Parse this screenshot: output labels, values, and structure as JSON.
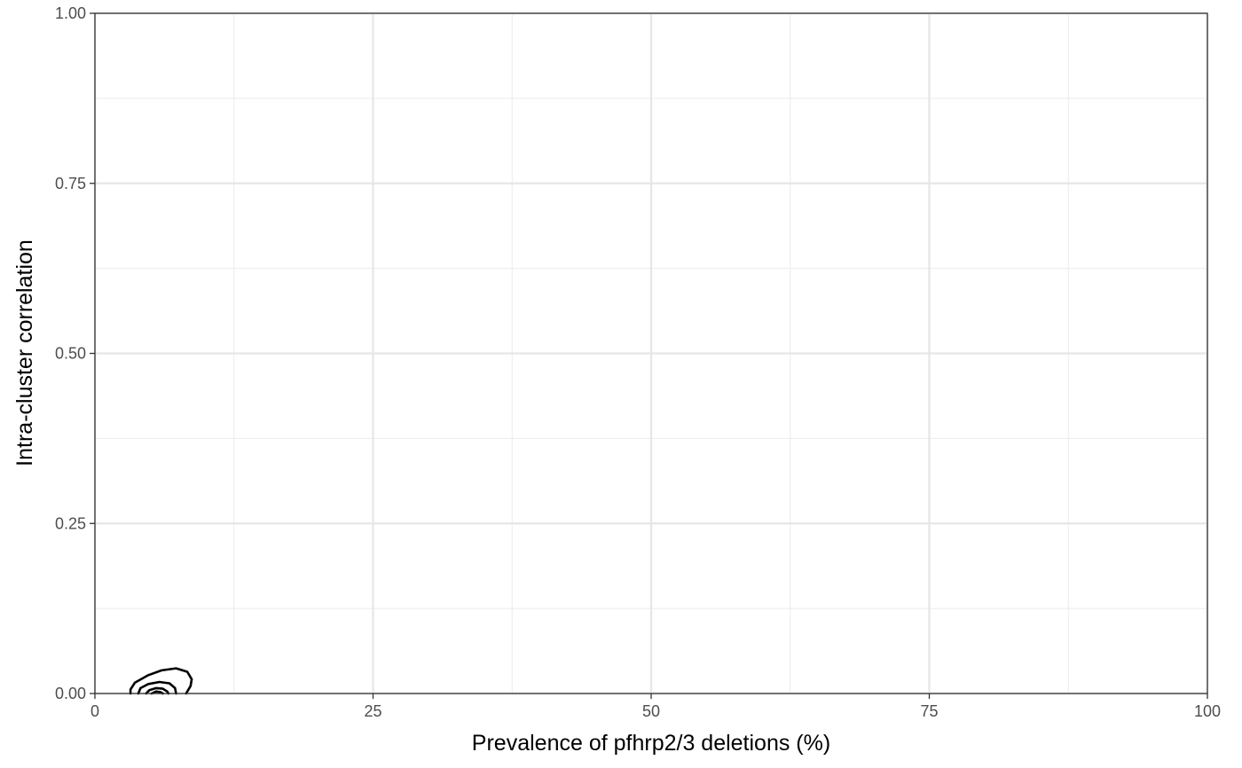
{
  "chart_data": {
    "type": "contour",
    "title": "",
    "xlabel": "Prevalence of pfhrp2/3 deletions (%)",
    "ylabel": "Intra-cluster correlation",
    "xlim": [
      0,
      100
    ],
    "ylim": [
      0,
      1
    ],
    "x_ticks": [
      0,
      25,
      50,
      75,
      100
    ],
    "x_tick_labels": [
      "0",
      "25",
      "50",
      "75",
      "100"
    ],
    "y_ticks": [
      0,
      0.25,
      0.5,
      0.75,
      1
    ],
    "y_tick_labels": [
      "0.00",
      "0.25",
      "0.50",
      "0.75",
      "1.00"
    ],
    "grid": true,
    "line_color": "#000000",
    "contours": [
      {
        "level": 1,
        "points": [
          [
            3.2,
            0
          ],
          [
            3.2,
            0.006
          ],
          [
            3.6,
            0.016
          ],
          [
            4.8,
            0.027
          ],
          [
            6.0,
            0.034
          ],
          [
            7.3,
            0.037
          ],
          [
            8.3,
            0.032
          ],
          [
            8.7,
            0.021
          ],
          [
            8.6,
            0.011
          ],
          [
            8.2,
            0
          ]
        ]
      },
      {
        "level": 2,
        "points": [
          [
            3.9,
            0
          ],
          [
            4.1,
            0.008
          ],
          [
            4.8,
            0.014
          ],
          [
            5.8,
            0.017
          ],
          [
            6.7,
            0.015
          ],
          [
            7.2,
            0.008
          ],
          [
            7.3,
            0
          ]
        ]
      },
      {
        "level": 3,
        "points": [
          [
            4.6,
            0
          ],
          [
            4.9,
            0.005
          ],
          [
            5.5,
            0.008
          ],
          [
            6.1,
            0.007
          ],
          [
            6.5,
            0.003
          ],
          [
            6.6,
            0
          ]
        ]
      },
      {
        "level": 4,
        "points": [
          [
            5.1,
            0
          ],
          [
            5.5,
            0.003
          ],
          [
            5.9,
            0.002
          ],
          [
            6.1,
            0
          ]
        ]
      }
    ]
  }
}
